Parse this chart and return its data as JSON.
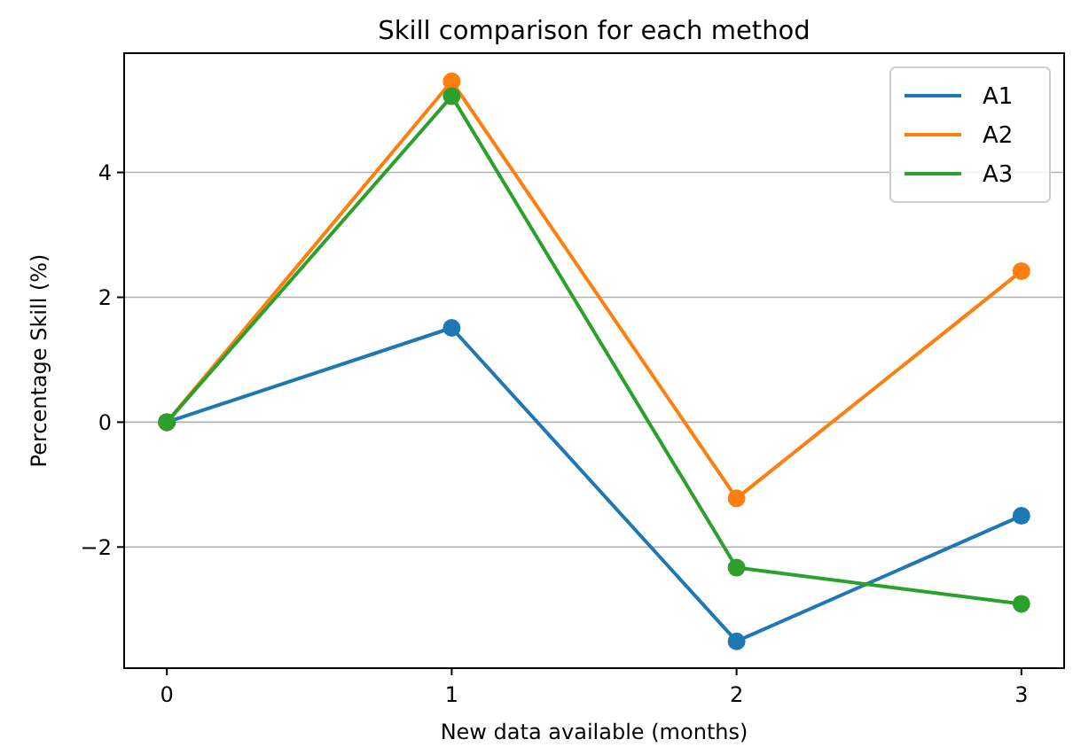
{
  "chart_data": {
    "type": "line",
    "title": "Skill comparison for each method",
    "xlabel": "New data available (months)",
    "ylabel": "Percentage Skill (%)",
    "x": [
      0,
      1,
      2,
      3
    ],
    "series": [
      {
        "name": "A1",
        "color": "#1f77b4",
        "values": [
          0,
          1.51,
          -3.51,
          -1.5
        ]
      },
      {
        "name": "A2",
        "color": "#ff7f0e",
        "values": [
          0,
          5.46,
          -1.22,
          2.42
        ]
      },
      {
        "name": "A3",
        "color": "#2ca02c",
        "values": [
          0,
          5.22,
          -2.33,
          -2.91
        ]
      }
    ],
    "xlim": [
      -0.15,
      3.15
    ],
    "xticks": [
      0,
      1,
      2,
      3
    ],
    "ylim": [
      -3.94,
      5.91
    ],
    "yticks": [
      {
        "value": -2,
        "label": "−2"
      },
      0,
      2,
      4
    ],
    "grid": "y",
    "legend": "top right",
    "marker": "circle",
    "line_style": "solid"
  }
}
